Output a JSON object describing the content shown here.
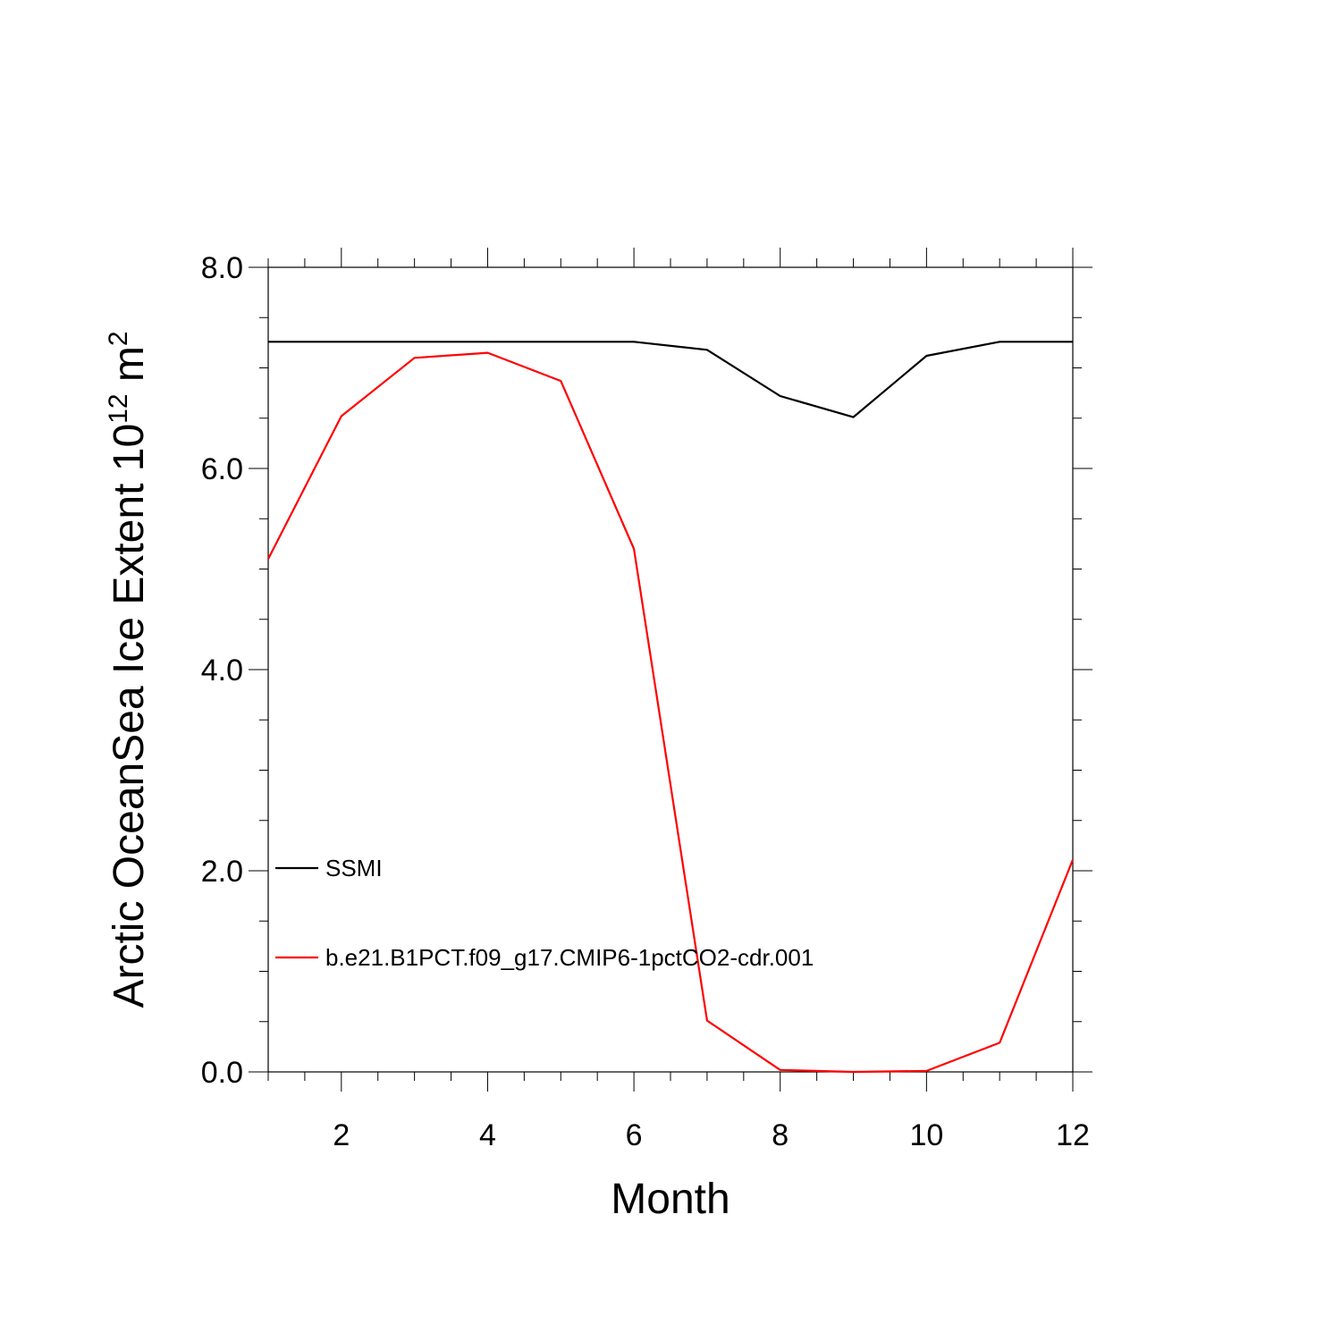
{
  "chart_data": {
    "type": "line",
    "title": "",
    "xlabel": "Month",
    "ylabel_main": "Arctic OceanSea Ice Extent 10",
    "ylabel_sup": "12",
    "ylabel_unit": " m",
    "ylabel_unit_sup": "2",
    "xlim": [
      1,
      12
    ],
    "ylim": [
      0,
      8
    ],
    "x_ticks": [
      2,
      4,
      6,
      8,
      10,
      12
    ],
    "x_tick_labels": [
      "2",
      "4",
      "6",
      "8",
      "10",
      "12"
    ],
    "y_ticks": [
      0,
      2,
      4,
      6,
      8
    ],
    "y_tick_labels": [
      "0.0",
      "2.0",
      "4.0",
      "6.0",
      "8.0"
    ],
    "grid": false,
    "legend_position": "lower-left",
    "x": [
      1,
      2,
      3,
      4,
      5,
      6,
      7,
      8,
      9,
      10,
      11,
      12
    ],
    "series": [
      {
        "name": "SSMI",
        "color": "#000000",
        "values": [
          7.26,
          7.26,
          7.26,
          7.26,
          7.26,
          7.26,
          7.18,
          6.72,
          6.51,
          7.12,
          7.26,
          7.26
        ]
      },
      {
        "name": "b.e21.B1PCT.f09_g17.CMIP6-1pctCO2-cdr.001",
        "color": "#ff0000",
        "values": [
          5.1,
          6.52,
          7.1,
          7.15,
          6.87,
          5.2,
          0.51,
          0.02,
          0.0,
          0.01,
          0.29,
          2.11
        ]
      }
    ]
  }
}
